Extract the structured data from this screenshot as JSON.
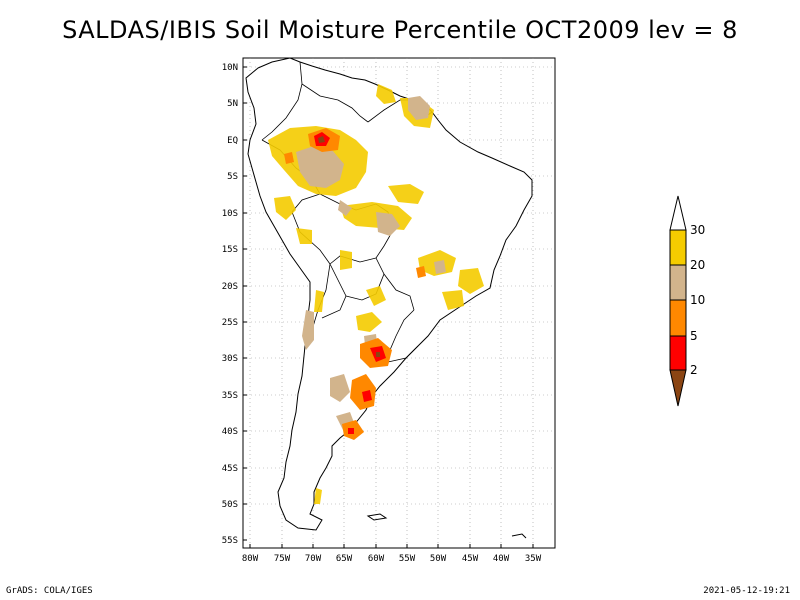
{
  "title": "SALDAS/IBIS Soil Moisture Percentile OCT2009 lev = 8",
  "lat_labels": [
    "10N",
    "5N",
    "EQ",
    "5S",
    "10S",
    "15S",
    "20S",
    "25S",
    "30S",
    "35S",
    "40S",
    "45S",
    "50S",
    "55S"
  ],
  "lon_labels": [
    "80W",
    "75W",
    "70W",
    "65W",
    "60W",
    "55W",
    "50W",
    "45W",
    "40W",
    "35W"
  ],
  "colorbar": {
    "labels": [
      "30",
      "20",
      "10",
      "5",
      "2"
    ],
    "colors": [
      "#ffffff",
      "#f5cc00",
      "#d2b48c",
      "#ff8800",
      "#ff0000",
      "#8b4513"
    ]
  },
  "footer_left": "GrADS: COLA/IGES",
  "footer_right": "2021-05-12-19:21"
}
